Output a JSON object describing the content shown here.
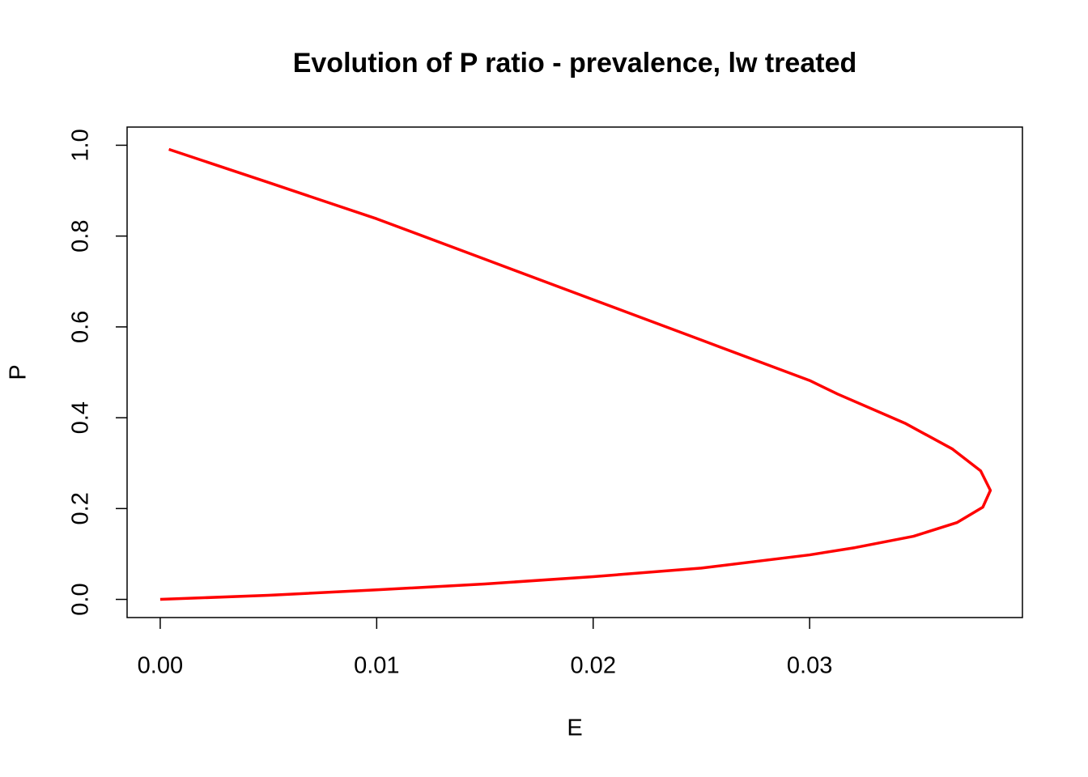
{
  "chart_data": {
    "type": "line",
    "title": "Evolution of P ratio - prevalence, lw treated",
    "x_label": "E",
    "y_label": "P",
    "x": [
      0,
      0.005,
      0.01,
      0.015,
      0.02,
      0.025,
      0.03,
      0.0321,
      0.0348,
      0.0368,
      0.038,
      0.03835,
      0.0379,
      0.0366,
      0.0344,
      0.0313,
      0.03,
      0.025,
      0.02,
      0.015,
      0.01,
      0.005,
      0.0004
    ],
    "series": [
      {
        "name": "P",
        "color": "#ff0000",
        "values": [
          0,
          0.009,
          0.021,
          0.034,
          0.05,
          0.069,
          0.098,
          0.114,
          0.139,
          0.169,
          0.203,
          0.24,
          0.283,
          0.331,
          0.388,
          0.452,
          0.482,
          0.571,
          0.66,
          0.749,
          0.838,
          0.918,
          0.991
        ]
      }
    ],
    "xlim": [
      -0.00153,
      0.03983
    ],
    "ylim": [
      -0.04,
      1.04
    ],
    "xticks": [
      {
        "value": 0,
        "label": "0.00"
      },
      0.01,
      0.02,
      0.03
    ],
    "yticks": [
      {
        "value": 0,
        "label": "0.0"
      },
      0.2,
      0.4,
      0.6,
      0.8,
      {
        "value": 1,
        "label": "1.0"
      }
    ]
  }
}
